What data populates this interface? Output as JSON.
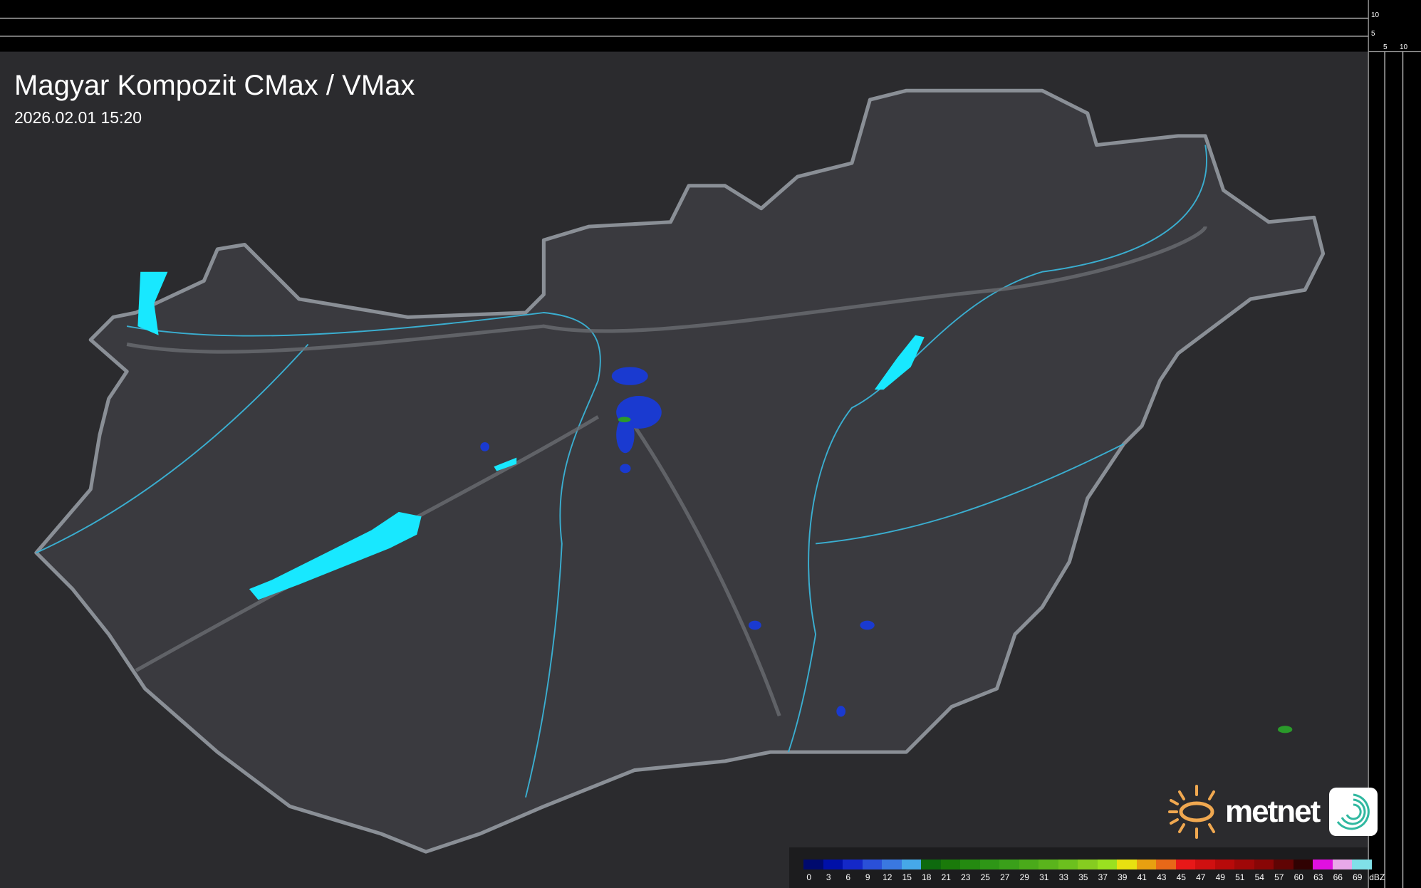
{
  "header": {
    "title": "Magyar Kompozit CMax / VMax",
    "timestamp": "2026.02.01 15:20"
  },
  "side_axes": {
    "top_ticks": [
      "10",
      "5"
    ],
    "right_ticks": [
      "5",
      "10"
    ]
  },
  "legend": {
    "unit": "dBZ",
    "labels": [
      "0",
      "3",
      "6",
      "9",
      "12",
      "15",
      "18",
      "21",
      "23",
      "25",
      "27",
      "29",
      "31",
      "33",
      "35",
      "37",
      "39",
      "41",
      "43",
      "45",
      "47",
      "49",
      "51",
      "54",
      "57",
      "60",
      "63",
      "66",
      "69"
    ],
    "colors": [
      "#000a6e",
      "#0010a8",
      "#1428c8",
      "#2a50d8",
      "#3a78e0",
      "#46a8e8",
      "#0e6a0e",
      "#1a7a0a",
      "#248a10",
      "#2e9616",
      "#3aa01a",
      "#4aaa1a",
      "#5ab41c",
      "#6cc01e",
      "#86cc20",
      "#9ae020",
      "#e8e010",
      "#e8a010",
      "#e86818",
      "#e81818",
      "#d01010",
      "#b80a0a",
      "#a00808",
      "#880606",
      "#600404",
      "#300202",
      "#e010e0",
      "#e8a8e8",
      "#80e0e8"
    ]
  },
  "map": {
    "background": "#2b2b2e",
    "country_fill": "#3a3a3f",
    "border_color": "#8a8f96",
    "river_color": "#3aaed0",
    "lake_color": "#18e8ff",
    "radar_color": "#1a3ad0",
    "lakes": [
      "Balaton",
      "Fertő",
      "Tisza-tó"
    ]
  },
  "logo": {
    "text": "metnet"
  }
}
